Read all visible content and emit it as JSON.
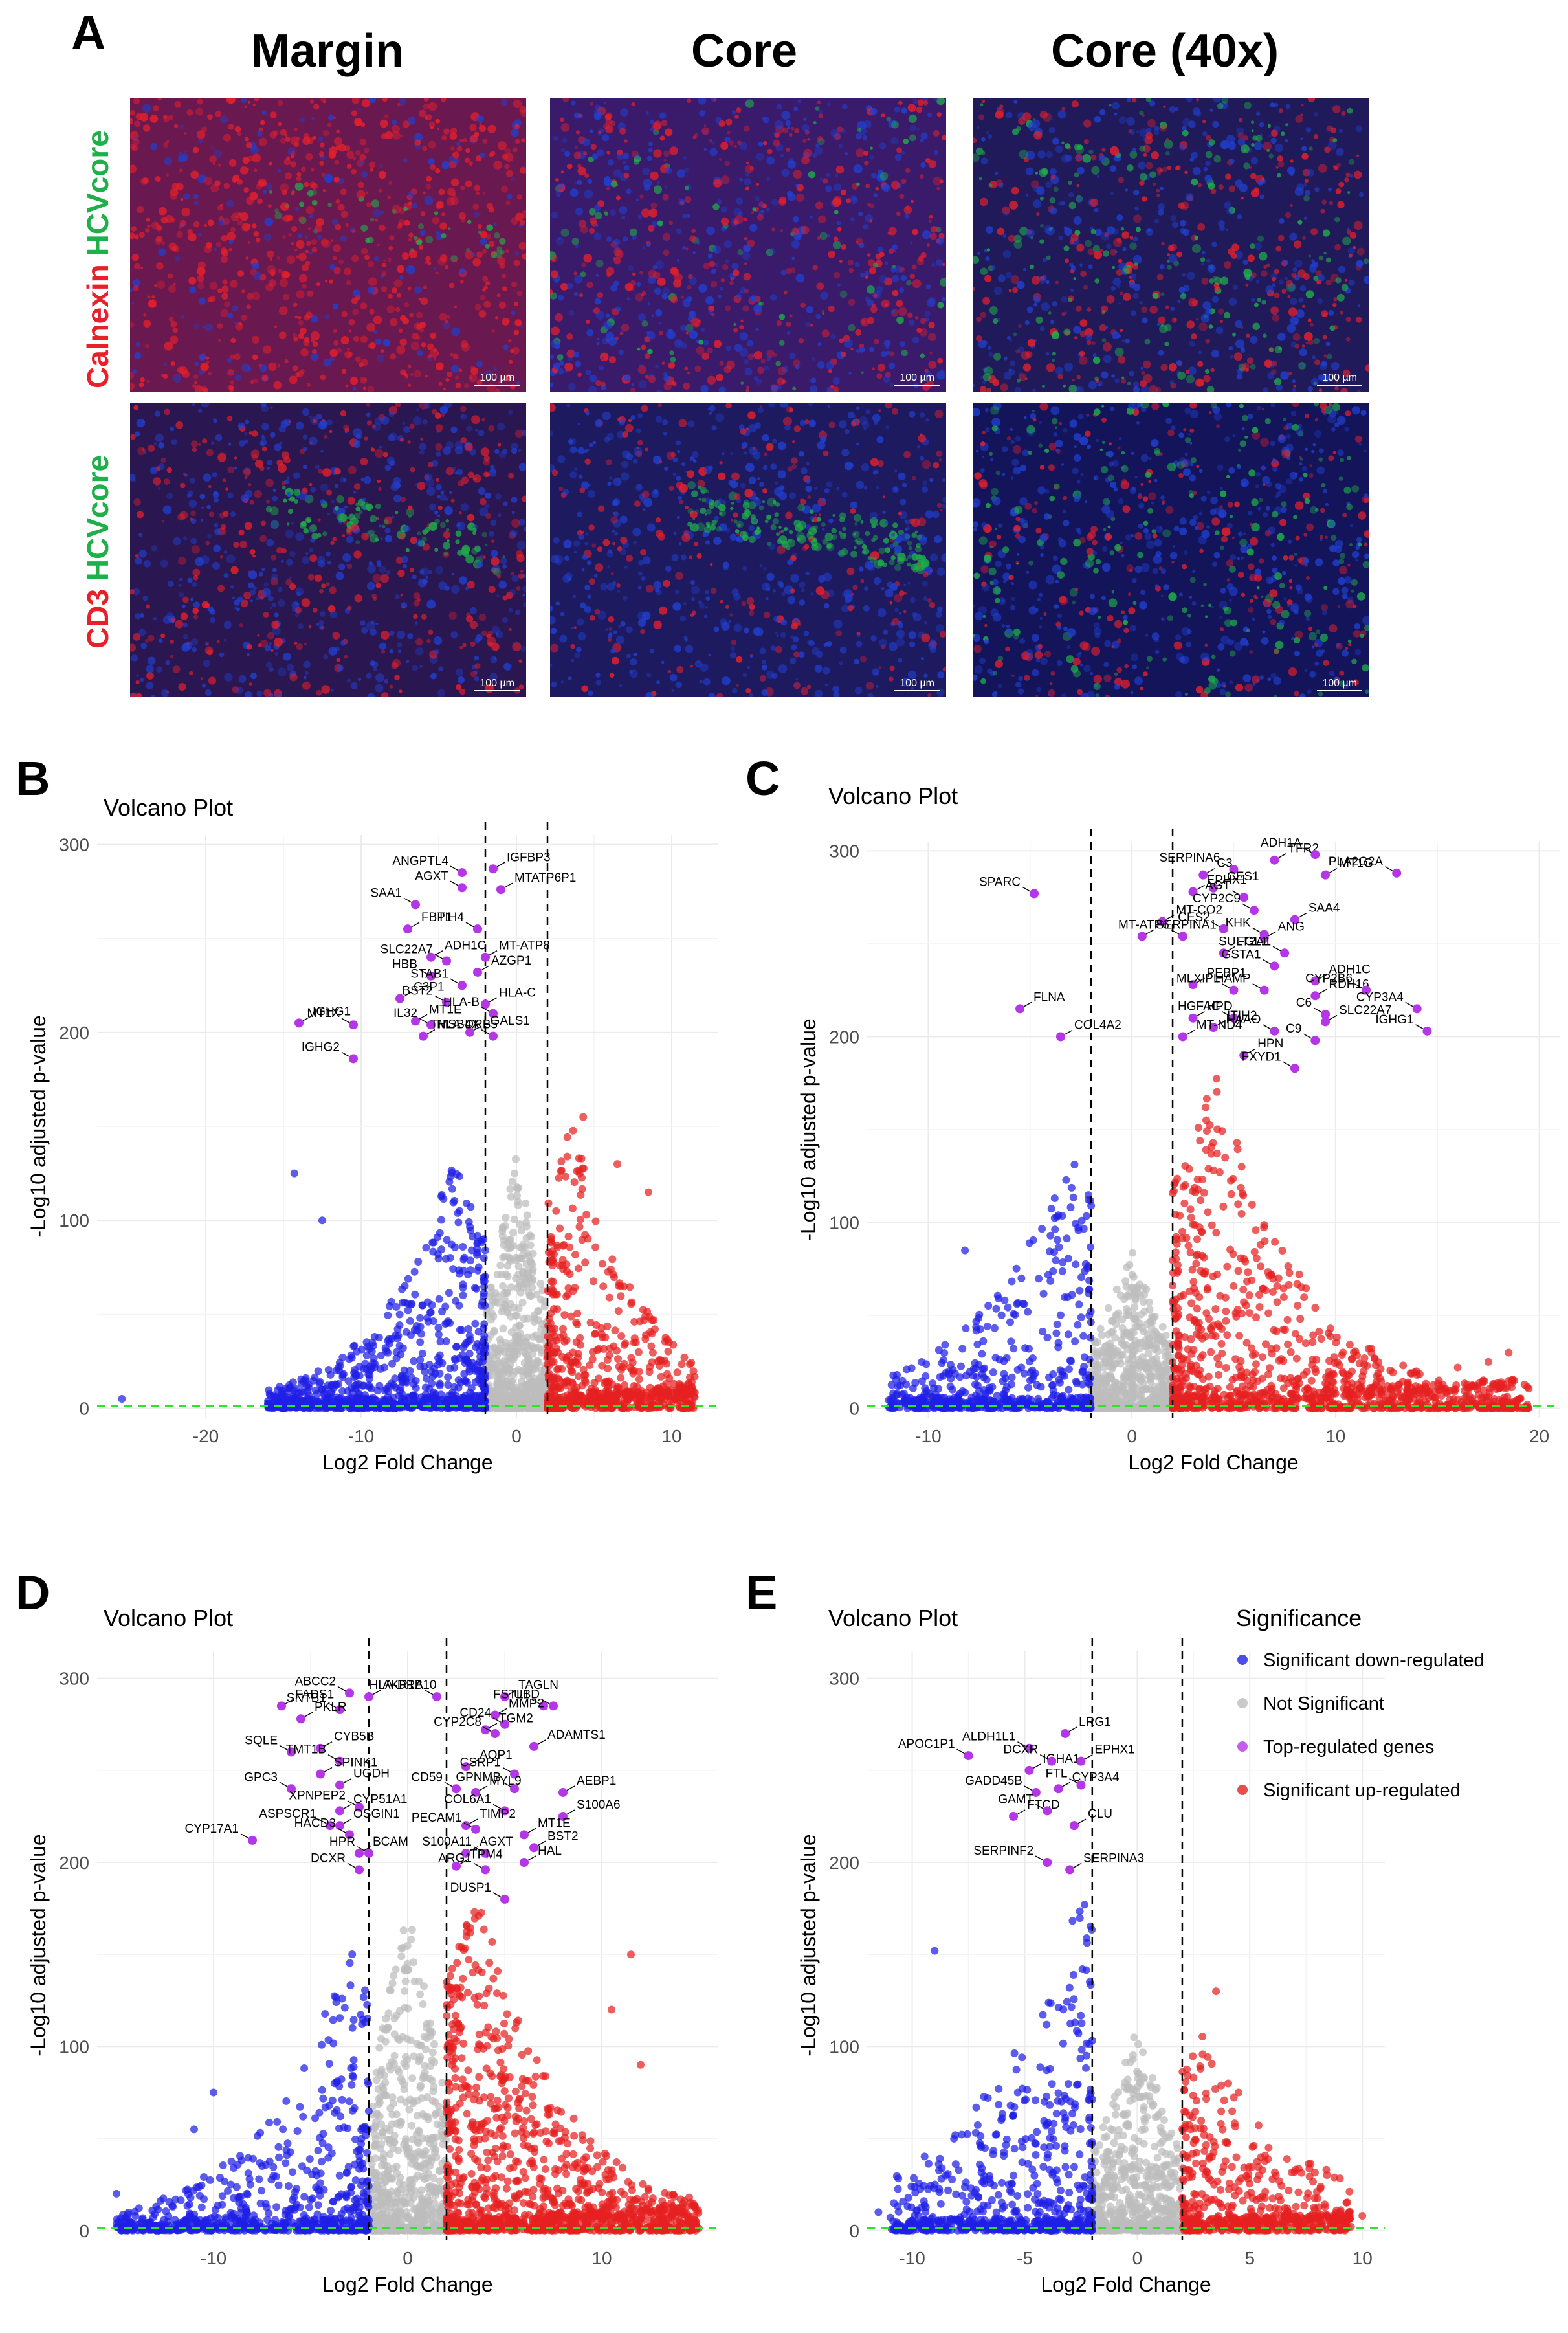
{
  "panel_a": {
    "letter": "A",
    "columns": [
      "Margin",
      "Core",
      "Core (40x)"
    ],
    "rows": [
      {
        "label_red": "Calnexin",
        "label_green": "HCVcore"
      },
      {
        "label_red": "CD3",
        "label_green": "HCVcore"
      }
    ],
    "scale_bar": "100 µm",
    "colors": {
      "red": "#e8202a",
      "green": "#1fb04a",
      "blue": "#2040d0"
    }
  },
  "chart_data": [
    {
      "panel": "B",
      "type": "scatter",
      "title": "Volcano Plot",
      "xlabel": "Log2 Fold Change",
      "ylabel": "-Log10 adjusted p-value",
      "xlim": [
        -27,
        13
      ],
      "ylim": [
        -5,
        305
      ],
      "xticks": [
        -20,
        -10,
        0,
        10
      ],
      "yticks": [
        0,
        100,
        200,
        300
      ],
      "vlines": [
        -2,
        2
      ],
      "hline": 1.3,
      "seed": 11,
      "down": {
        "xmin": -16,
        "xmax": -2,
        "peak": -4,
        "ymax": 140,
        "n": 700
      },
      "up": {
        "xmin": 2,
        "xmax": 11.5,
        "peak": 3.5,
        "ymax": 155,
        "n": 520
      },
      "ns_ymax": 135,
      "extra_points": [
        [
          -25.4,
          5,
          "down"
        ],
        [
          -14.3,
          125,
          "down"
        ],
        [
          -12.5,
          100,
          "down"
        ],
        [
          6.5,
          130,
          "up"
        ],
        [
          8.5,
          115,
          "up"
        ],
        [
          4.3,
          155,
          "up"
        ]
      ],
      "top_genes": [
        {
          "label": "ANGPTL4",
          "x": -3.5,
          "y": 285
        },
        {
          "label": "IGFBP3",
          "x": -1.5,
          "y": 287
        },
        {
          "label": "AGXT",
          "x": -3.5,
          "y": 277
        },
        {
          "label": "MTATP6P1",
          "x": -1.0,
          "y": 276
        },
        {
          "label": "SAA1",
          "x": -6.5,
          "y": 268
        },
        {
          "label": "FBP1",
          "x": -7.0,
          "y": 255
        },
        {
          "label": "ITIH4",
          "x": -2.5,
          "y": 255
        },
        {
          "label": "ADH1C",
          "x": -5.5,
          "y": 240
        },
        {
          "label": "SLC22A7",
          "x": -4.5,
          "y": 238
        },
        {
          "label": "MT-ATP8",
          "x": -2.0,
          "y": 240
        },
        {
          "label": "HBB",
          "x": -5.5,
          "y": 230
        },
        {
          "label": "AZGP1",
          "x": -2.5,
          "y": 232
        },
        {
          "label": "STAB1",
          "x": -3.5,
          "y": 225
        },
        {
          "label": "C3P1",
          "x": -7.5,
          "y": 218
        },
        {
          "label": "BST2",
          "x": -4.5,
          "y": 216
        },
        {
          "label": "HLA-C",
          "x": -2.0,
          "y": 215
        },
        {
          "label": "MT1X",
          "x": -10.5,
          "y": 204
        },
        {
          "label": "MT1E",
          "x": -6.5,
          "y": 206
        },
        {
          "label": "HLA-B",
          "x": -1.5,
          "y": 210
        },
        {
          "label": "IGHG1",
          "x": -14.0,
          "y": 205
        },
        {
          "label": "IL32",
          "x": -5.5,
          "y": 204
        },
        {
          "label": "LGALS1",
          "x": -3.0,
          "y": 200
        },
        {
          "label": "IGHG2",
          "x": -10.5,
          "y": 186
        },
        {
          "label": "HLA-DRB5",
          "x": -6.0,
          "y": 198
        },
        {
          "label": "TMSB4X",
          "x": -1.5,
          "y": 198
        }
      ]
    },
    {
      "panel": "C",
      "type": "scatter",
      "title": "Volcano Plot",
      "xlabel": "Log2 Fold Change",
      "ylabel": "-Log10 adjusted p-value",
      "xlim": [
        -13,
        21
      ],
      "ylim": [
        -5,
        305
      ],
      "xticks": [
        -10,
        0,
        10,
        20
      ],
      "yticks": [
        0,
        100,
        200,
        300
      ],
      "vlines": [
        -2,
        2
      ],
      "hline": 1.3,
      "seed": 23,
      "down": {
        "xmin": -12,
        "xmax": -2,
        "peak": -3,
        "ymax": 140,
        "n": 420
      },
      "up": {
        "xmin": 2,
        "xmax": 19.5,
        "peak": 4,
        "ymax": 185,
        "n": 900
      },
      "ns_ymax": 85,
      "extra_points": [
        [
          -11.5,
          12,
          "down"
        ],
        [
          -8.2,
          85,
          "down"
        ],
        [
          18.5,
          30,
          "up"
        ],
        [
          17.5,
          25,
          "up"
        ],
        [
          16,
          22,
          "up"
        ],
        [
          14,
          18,
          "up"
        ],
        [
          12,
          14,
          "up"
        ],
        [
          10,
          8,
          "up"
        ]
      ],
      "top_genes": [
        {
          "label": "SPARC",
          "x": -4.8,
          "y": 277
        },
        {
          "label": "C3",
          "x": 3.5,
          "y": 287
        },
        {
          "label": "SERPINA6",
          "x": 5.0,
          "y": 290
        },
        {
          "label": "TFR2",
          "x": 7.0,
          "y": 295
        },
        {
          "label": "ADH1A",
          "x": 9.0,
          "y": 298
        },
        {
          "label": "CES1",
          "x": 4.0,
          "y": 280
        },
        {
          "label": "AGT",
          "x": 5.5,
          "y": 275
        },
        {
          "label": "MT1G",
          "x": 9.5,
          "y": 287
        },
        {
          "label": "PLA2G2A",
          "x": 13.0,
          "y": 288
        },
        {
          "label": "EPHX1",
          "x": 3.0,
          "y": 278
        },
        {
          "label": "CYP2C9",
          "x": 6.0,
          "y": 268
        },
        {
          "label": "SAA4",
          "x": 8.0,
          "y": 263
        },
        {
          "label": "KHK",
          "x": 6.5,
          "y": 255
        },
        {
          "label": "MT-CO2",
          "x": 1.5,
          "y": 262
        },
        {
          "label": "CES2",
          "x": 4.5,
          "y": 258
        },
        {
          "label": "ANG",
          "x": 6.5,
          "y": 253
        },
        {
          "label": "SULT2A1",
          "x": 7.5,
          "y": 245
        },
        {
          "label": "SERPINA1",
          "x": 0.5,
          "y": 254
        },
        {
          "label": "MT-ATP6",
          "x": 2.5,
          "y": 254
        },
        {
          "label": "FGL1",
          "x": 4.5,
          "y": 245
        },
        {
          "label": "GSTA1",
          "x": 7.0,
          "y": 238
        },
        {
          "label": "ADH1C",
          "x": 9.0,
          "y": 230
        },
        {
          "label": "HAMP",
          "x": 6.5,
          "y": 225
        },
        {
          "label": "PEBP1",
          "x": 3.0,
          "y": 228
        },
        {
          "label": "MLXIPL",
          "x": 5.0,
          "y": 225
        },
        {
          "label": "RDH16",
          "x": 9.0,
          "y": 222
        },
        {
          "label": "CYP2B6",
          "x": 11.5,
          "y": 225
        },
        {
          "label": "FLNA",
          "x": -5.5,
          "y": 215
        },
        {
          "label": "C6",
          "x": 9.5,
          "y": 212
        },
        {
          "label": "HPD",
          "x": 3.0,
          "y": 210
        },
        {
          "label": "HGFAC",
          "x": 5.0,
          "y": 210
        },
        {
          "label": "SLC22A7",
          "x": 9.5,
          "y": 208
        },
        {
          "label": "CYP3A4",
          "x": 14.0,
          "y": 215
        },
        {
          "label": "COL4A2",
          "x": -3.5,
          "y": 200
        },
        {
          "label": "IGHG1",
          "x": 14.5,
          "y": 203
        },
        {
          "label": "ITIH2",
          "x": 4.0,
          "y": 205
        },
        {
          "label": "HAAO",
          "x": 7.0,
          "y": 203
        },
        {
          "label": "MT-ND4",
          "x": 2.5,
          "y": 200
        },
        {
          "label": "C9",
          "x": 9.0,
          "y": 198
        },
        {
          "label": "HPN",
          "x": 5.5,
          "y": 190
        },
        {
          "label": "FXYD1",
          "x": 8.0,
          "y": 183
        }
      ]
    },
    {
      "panel": "D",
      "type": "scatter",
      "title": "Volcano Plot",
      "xlabel": "Log2 Fold Change",
      "ylabel": "-Log10 adjusted p-value",
      "xlim": [
        -16,
        16
      ],
      "ylim": [
        -5,
        315
      ],
      "xticks": [
        -10,
        0,
        10
      ],
      "yticks": [
        0,
        100,
        200,
        300
      ],
      "vlines": [
        -2,
        2
      ],
      "hline": 1.3,
      "seed": 37,
      "down": {
        "xmin": -15,
        "xmax": -2,
        "peak": -3,
        "ymax": 160,
        "n": 560
      },
      "up": {
        "xmin": 2,
        "xmax": 15,
        "peak": 3.5,
        "ymax": 190,
        "n": 1000
      },
      "ns_ymax": 185,
      "extra_points": [
        [
          -15,
          20,
          "down"
        ],
        [
          -10,
          75,
          "down"
        ],
        [
          -11,
          55,
          "down"
        ],
        [
          12,
          90,
          "up"
        ],
        [
          11.5,
          150,
          "up"
        ],
        [
          10.5,
          120,
          "up"
        ],
        [
          14.5,
          18,
          "up"
        ],
        [
          13,
          12,
          "up"
        ]
      ],
      "top_genes": [
        {
          "label": "ABCC2",
          "x": -3.0,
          "y": 292
        },
        {
          "label": "AKR1B10",
          "x": -2.0,
          "y": 290
        },
        {
          "label": "HLA-DRA",
          "x": 1.5,
          "y": 290
        },
        {
          "label": "TAGLN",
          "x": 5.0,
          "y": 290
        },
        {
          "label": "FSTL1",
          "x": 7.0,
          "y": 285
        },
        {
          "label": "FADS1",
          "x": -6.5,
          "y": 285
        },
        {
          "label": "SNTB1",
          "x": -3.5,
          "y": 283
        },
        {
          "label": "MMP2",
          "x": 4.5,
          "y": 280
        },
        {
          "label": "UBD",
          "x": 7.5,
          "y": 285
        },
        {
          "label": "PKLR",
          "x": -5.5,
          "y": 278
        },
        {
          "label": "CD24",
          "x": 5.0,
          "y": 275
        },
        {
          "label": "TGM2",
          "x": 4.0,
          "y": 272
        },
        {
          "label": "CYP2C8",
          "x": 4.5,
          "y": 270
        },
        {
          "label": "ADAMTS1",
          "x": 6.5,
          "y": 263
        },
        {
          "label": "SQLE",
          "x": -6.0,
          "y": 260
        },
        {
          "label": "CYB5B",
          "x": -4.5,
          "y": 262
        },
        {
          "label": "TMT1B",
          "x": -3.5,
          "y": 255
        },
        {
          "label": "AQP1",
          "x": 3.0,
          "y": 252
        },
        {
          "label": "CSRP1",
          "x": 5.5,
          "y": 248
        },
        {
          "label": "SPINK1",
          "x": -4.5,
          "y": 248
        },
        {
          "label": "GPC3",
          "x": -6.0,
          "y": 240
        },
        {
          "label": "UGDH",
          "x": -3.5,
          "y": 242
        },
        {
          "label": "CD59",
          "x": 2.5,
          "y": 240
        },
        {
          "label": "MYL9",
          "x": 3.5,
          "y": 238
        },
        {
          "label": "GPNMB",
          "x": 5.5,
          "y": 240
        },
        {
          "label": "AEBP1",
          "x": 8.0,
          "y": 238
        },
        {
          "label": "XPNPEP2",
          "x": -2.5,
          "y": 230
        },
        {
          "label": "CYP51A1",
          "x": -3.5,
          "y": 228
        },
        {
          "label": "COL6A1",
          "x": 5.0,
          "y": 228
        },
        {
          "label": "S100A6",
          "x": 8.0,
          "y": 225
        },
        {
          "label": "ASPSCR1",
          "x": -4.0,
          "y": 220
        },
        {
          "label": "OSGIN1",
          "x": -3.5,
          "y": 220
        },
        {
          "label": "HACD3",
          "x": -3.0,
          "y": 215
        },
        {
          "label": "TIMP2",
          "x": 3.0,
          "y": 220
        },
        {
          "label": "PECAM1",
          "x": 3.5,
          "y": 218
        },
        {
          "label": "MT1E",
          "x": 6.0,
          "y": 215
        },
        {
          "label": "CYP17A1",
          "x": -8.0,
          "y": 212
        },
        {
          "label": "BCAM",
          "x": -2.5,
          "y": 205
        },
        {
          "label": "HPR",
          "x": -2.0,
          "y": 205
        },
        {
          "label": "AGXT",
          "x": 3.0,
          "y": 205
        },
        {
          "label": "S100A11",
          "x": 4.0,
          "y": 205
        },
        {
          "label": "BST2",
          "x": 6.5,
          "y": 208
        },
        {
          "label": "DCXR",
          "x": -2.5,
          "y": 196
        },
        {
          "label": "TPM4",
          "x": 2.5,
          "y": 198
        },
        {
          "label": "ARG1",
          "x": 4.0,
          "y": 196
        },
        {
          "label": "HAL",
          "x": 6.0,
          "y": 200
        },
        {
          "label": "DUSP1",
          "x": 5.0,
          "y": 180
        }
      ]
    },
    {
      "panel": "E",
      "type": "scatter",
      "title": "Volcano Plot",
      "xlabel": "Log2 Fold Change",
      "ylabel": "-Log10 adjusted p-value",
      "xlim": [
        -12,
        11
      ],
      "ylim": [
        -5,
        315
      ],
      "xticks": [
        -10,
        -5,
        0,
        5,
        10
      ],
      "yticks": [
        0,
        100,
        200,
        300
      ],
      "vlines": [
        -2,
        2
      ],
      "hline": 1.3,
      "seed": 53,
      "down": {
        "xmin": -11,
        "xmax": -2,
        "peak": -2.5,
        "ymax": 190,
        "n": 520
      },
      "up": {
        "xmin": 2,
        "xmax": 9.5,
        "peak": 3,
        "ymax": 110,
        "n": 420
      },
      "ns_ymax": 110,
      "extra_points": [
        [
          -9,
          152,
          "down"
        ],
        [
          -11.5,
          10,
          "down"
        ],
        [
          3.5,
          130,
          "up"
        ],
        [
          10,
          8,
          "up"
        ],
        [
          4.5,
          75,
          "up"
        ]
      ],
      "top_genes": [
        {
          "label": "ALDH1L1",
          "x": -4.8,
          "y": 262
        },
        {
          "label": "LRG1",
          "x": -3.2,
          "y": 270
        },
        {
          "label": "APOC1P1",
          "x": -7.5,
          "y": 258
        },
        {
          "label": "IGHA1",
          "x": -4.8,
          "y": 250
        },
        {
          "label": "DCXR",
          "x": -3.8,
          "y": 255
        },
        {
          "label": "EPHX1",
          "x": -2.5,
          "y": 255
        },
        {
          "label": "GADD45B",
          "x": -4.5,
          "y": 238
        },
        {
          "label": "CYP3A4",
          "x": -3.5,
          "y": 240
        },
        {
          "label": "FTL",
          "x": -2.5,
          "y": 242
        },
        {
          "label": "FTCD",
          "x": -5.5,
          "y": 225
        },
        {
          "label": "GAMT",
          "x": -4.0,
          "y": 228
        },
        {
          "label": "CLU",
          "x": -2.8,
          "y": 220
        },
        {
          "label": "SERPINF2",
          "x": -4.0,
          "y": 200
        },
        {
          "label": "SERPINA3",
          "x": -3.0,
          "y": 196
        }
      ],
      "legend": {
        "title": "Significance",
        "items": [
          {
            "label": "Significant down-regulated",
            "color": "#1f1fe6"
          },
          {
            "label": "Not Significant",
            "color": "#bdbdbd"
          },
          {
            "label": "Top-regulated genes",
            "color": "#b536e6"
          },
          {
            "label": "Significant up-regulated",
            "color": "#e62020"
          }
        ]
      }
    }
  ]
}
